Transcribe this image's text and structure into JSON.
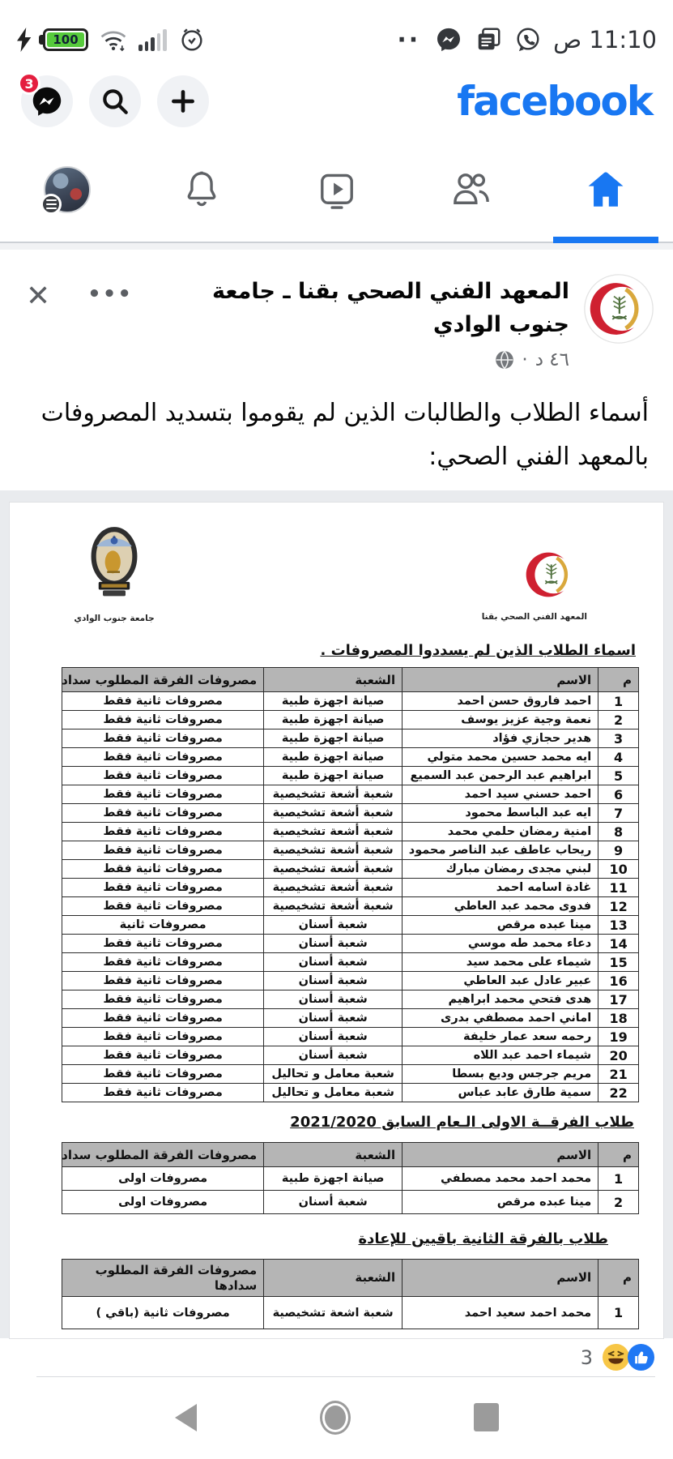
{
  "status_bar": {
    "time": "11:10 ص",
    "battery_percent": "100",
    "overflow_dots": "··",
    "icons": [
      "whatsapp-icon",
      "notes-icon",
      "messenger-icon",
      "bolt-icon",
      "battery-icon",
      "wifi-icon",
      "signal-icon",
      "alarm-icon"
    ]
  },
  "header": {
    "logo": "facebook",
    "messenger_badge": "3",
    "buttons": [
      "plus-icon",
      "search-icon",
      "messenger-icon"
    ]
  },
  "tabs": [
    "home",
    "friends",
    "watch",
    "notifications",
    "profile"
  ],
  "post": {
    "page_name": "المعهد الفني الصحي بقنا ـ جامعة جنوب الوادي",
    "timestamp": "٤٦ د",
    "timestamp_separator": "·",
    "menu_dots": "•••",
    "close_glyph": "✕",
    "body_text": "أسماء الطلاب والطالبات الذين لم يقوموا بتسديد المصروفات بالمعهد الفني الصحي:"
  },
  "document": {
    "institute_logo_caption": "المعهد الفني الصحي بقنا",
    "university_logo_caption": "جامعة جنوب الوادي",
    "title": "اسماء الطلاب الذين لم يسددوا المصروفات .",
    "columns": [
      "م",
      "الاسم",
      "الشعبة",
      "مصروفات الفرقة المطلوب سدادها"
    ],
    "table1_rows": [
      [
        "1",
        "احمد فاروق حسن احمد",
        "صيانة اجهزة طبية",
        "مصروفات ثانية  فقط"
      ],
      [
        "2",
        "نعمة وجية عزيز يوسف",
        "صيانة اجهزة طبية",
        "مصروفات ثانية  فقط"
      ],
      [
        "3",
        "هدير حجازي فؤاد",
        "صيانة اجهزة طبية",
        "مصروفات ثانية  فقط"
      ],
      [
        "4",
        "ايه محمد حسين محمد متولي",
        "صيانة اجهزة طبية",
        "مصروفات ثانية  فقط"
      ],
      [
        "5",
        "ابراهيم عبد الرحمن عبد السميع",
        "صيانة اجهزة طبية",
        "مصروفات ثانية  فقط"
      ],
      [
        "6",
        "احمد حسني سيد احمد",
        "شعبة أشعة تشخيصية",
        "مصروفات ثانية  فقط"
      ],
      [
        "7",
        "ايه عبد الباسط محمود",
        "شعبة أشعة تشخيصية",
        "مصروفات ثانية  فقط"
      ],
      [
        "8",
        "امنية رمضان حلمي محمد",
        "شعبة أشعة تشخيصية",
        "مصروفات ثانية  فقط"
      ],
      [
        "9",
        "ريحاب عاطف عبد الناصر محمود",
        "شعبة أشعة تشخيصية",
        "مصروفات ثانية  فقط"
      ],
      [
        "10",
        "لبني مجدى رمضان مبارك",
        "شعبة أشعة تشخيصية",
        "مصروفات ثانية  فقط"
      ],
      [
        "11",
        "غادة اسامه احمد",
        "شعبة أشعة تشخيصية",
        "مصروفات ثانية  فقط"
      ],
      [
        "12",
        "فدوى محمد عبد العاطي",
        "شعبة أشعة تشخيصية",
        "مصروفات ثانية  فقط"
      ],
      [
        "13",
        "مينا عبده مرقص",
        "شعبة أسنان",
        "مصروفات ثانية"
      ],
      [
        "14",
        "دعاء محمد طه موسي",
        "شعبة أسنان",
        "مصروفات ثانية  فقط"
      ],
      [
        "15",
        "شيماء على محمد سيد",
        "شعبة أسنان",
        "مصروفات ثانية  فقط"
      ],
      [
        "16",
        "عبير عادل عبد العاطي",
        "شعبة أسنان",
        "مصروفات ثانية  فقط"
      ],
      [
        "17",
        "هدى فتحي محمد ابراهيم",
        "شعبة أسنان",
        "مصروفات ثانية  فقط"
      ],
      [
        "18",
        "اماني احمد مصطفي بدرى",
        "شعبة أسنان",
        "مصروفات ثانية  فقط"
      ],
      [
        "19",
        "رحمه سعد عمار خليفة",
        "شعبة أسنان",
        "مصروفات ثانية  فقط"
      ],
      [
        "20",
        "شيماء احمد عبد اللاه",
        "شعبة أسنان",
        "مصروفات ثانية  فقط"
      ],
      [
        "21",
        "مريم جرجس وديع بسطا",
        "شعبة معامل و تحاليل",
        "مصروفات ثانية  فقط"
      ],
      [
        "22",
        "سمية طارق عابد عباس",
        "شعبة معامل و تحاليل",
        "مصروفات ثانية  فقط"
      ]
    ],
    "section2_title": "طلاب الفرقــة الاولى الـعام السابق 2021/2020",
    "table2_rows": [
      [
        "1",
        "محمد احمد محمد مصطفي",
        "صيانة اجهزة طبية",
        "مصروفات اولى"
      ],
      [
        "2",
        "مينا عبده مرقص",
        "شعبة أسنان",
        "مصروفات اولى"
      ]
    ],
    "section3_title": "طلاب بالفرقة الثانية باقيين للإعادة",
    "table3_rows": [
      [
        "1",
        "محمد احمد سعيد احمد",
        "شعبة اشعة تشخيصية",
        "مصروفات ثانية (باقي )"
      ]
    ]
  },
  "reactions": {
    "count": "3",
    "types": [
      "like-icon",
      "haha-icon"
    ]
  },
  "navbar_icons": [
    "back-icon",
    "home-circle-icon",
    "recents-square-icon"
  ],
  "colors": {
    "facebook_blue": "#1877f2",
    "badge_red": "#e41e3f",
    "battery_green": "#57cb3c",
    "table_header_gray": "#b5b5b5",
    "like_blue": "#2078f4",
    "haha_yellow": "#f7c646"
  }
}
